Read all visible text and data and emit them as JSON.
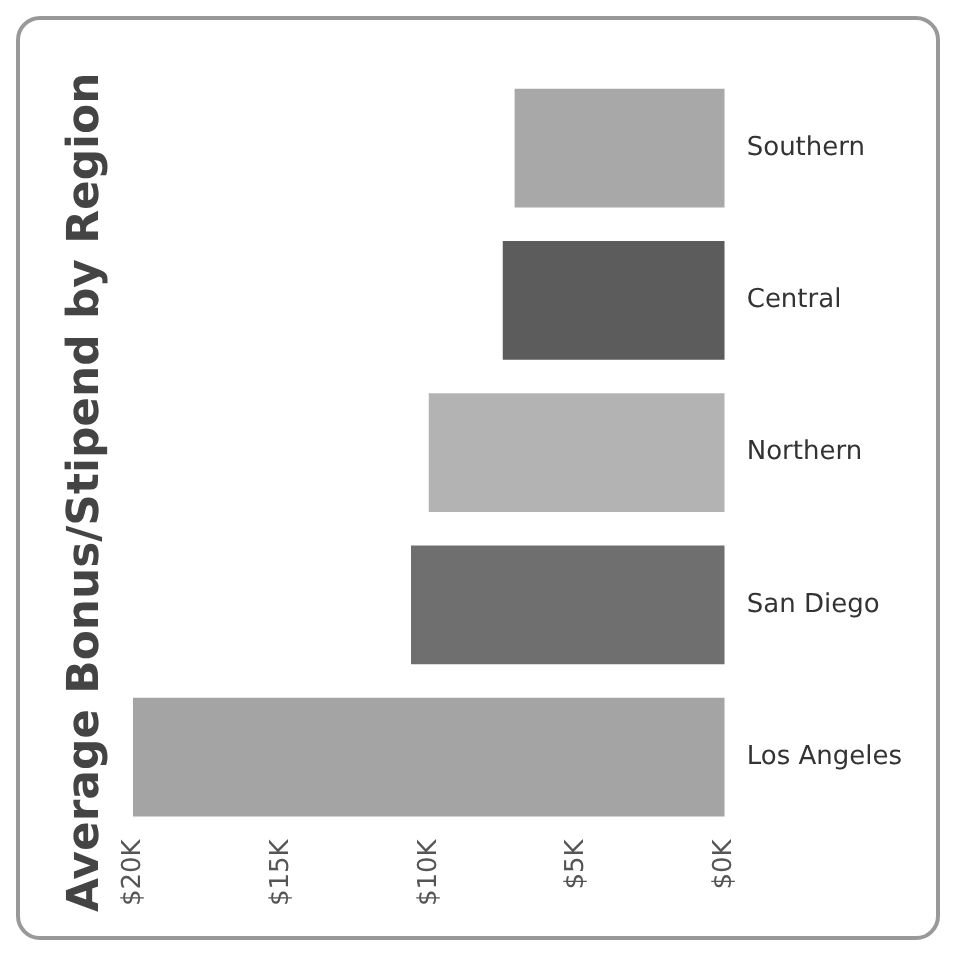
{
  "chart_data": {
    "type": "bar",
    "orientation": "horizontal",
    "title": "Average Bonus/Stipend by Region",
    "categories": [
      "Southern",
      "Central",
      "Northern",
      "San Diego",
      "Los Angeles"
    ],
    "values": [
      7.1,
      7.5,
      10.0,
      10.6,
      20.0
    ],
    "colors": [
      "#a8a8a8",
      "#5c5c5c",
      "#b3b3b3",
      "#6f6f6f",
      "#a4a4a4"
    ],
    "xlim": [
      20,
      0
    ],
    "xticks": [
      {
        "value": 20,
        "label": "$20K"
      },
      {
        "value": 15,
        "label": "$15K"
      },
      {
        "value": 10,
        "label": "$10K"
      },
      {
        "value": 5,
        "label": "$5K"
      },
      {
        "value": 0,
        "label": "$0K"
      }
    ],
    "grid": false,
    "legend": false
  }
}
